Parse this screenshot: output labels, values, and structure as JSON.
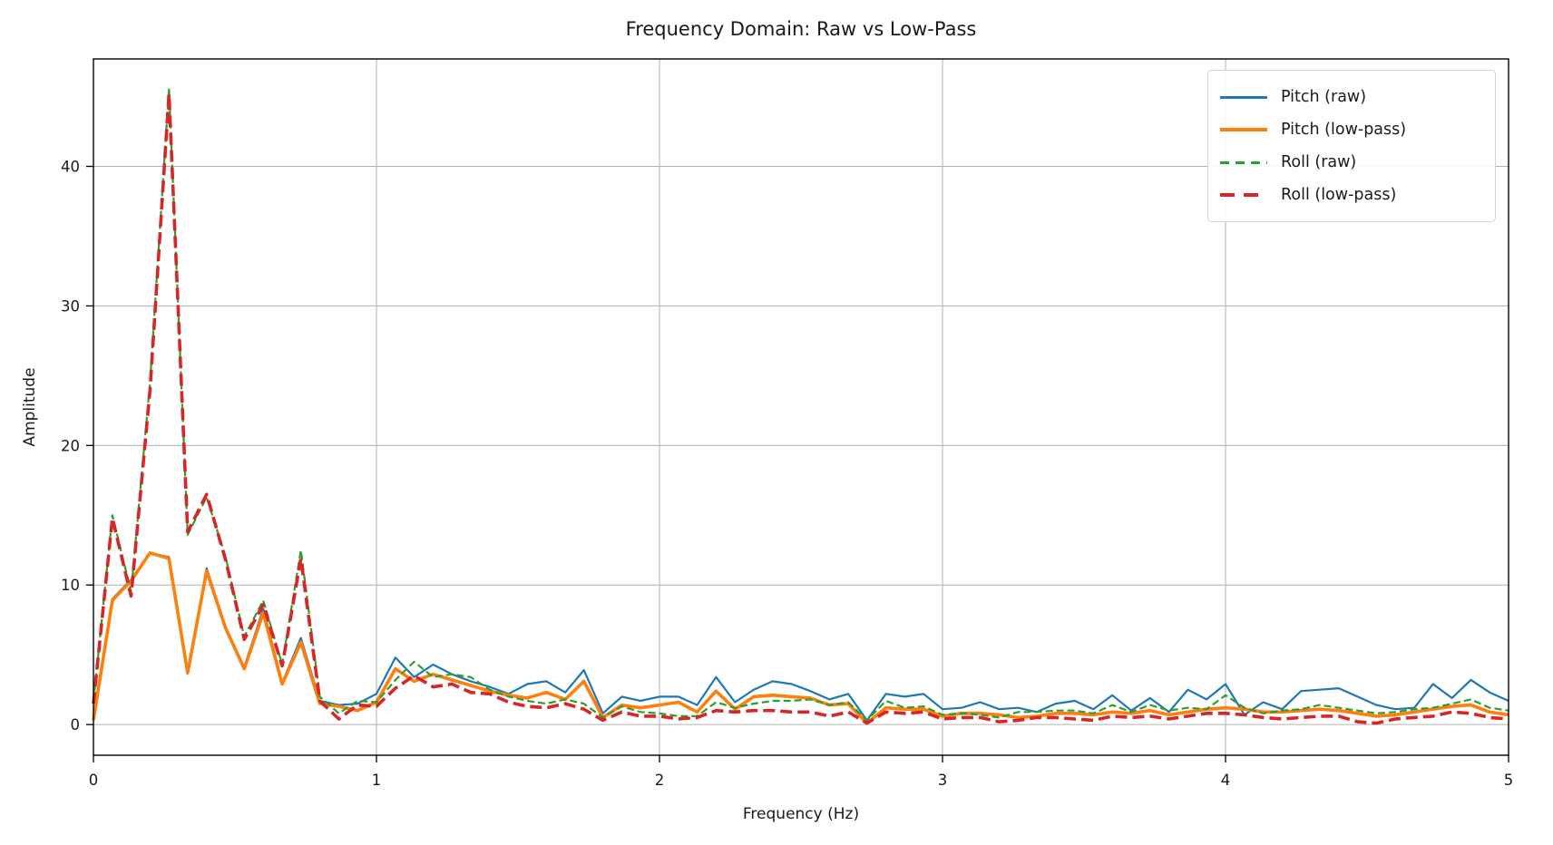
{
  "chart_data": {
    "type": "line",
    "title": "Frequency Domain: Raw vs Low-Pass",
    "xlabel": "Frequency (Hz)",
    "ylabel": "Amplitude",
    "xlim": [
      0,
      5
    ],
    "ylim": [
      -2.2,
      47.7
    ],
    "xticks": [
      0,
      1,
      2,
      3,
      4,
      5
    ],
    "yticks": [
      0,
      10,
      20,
      30,
      40
    ],
    "grid": true,
    "legend_position": "upper right",
    "style": {
      "background": "#ffffff",
      "grid_color": "#b0b0b0",
      "spine_color": "#000000",
      "tick_color": "#000000",
      "text_color": "#1a1a1a"
    },
    "x": [
      0,
      0.067,
      0.133,
      0.2,
      0.267,
      0.333,
      0.4,
      0.467,
      0.533,
      0.6,
      0.667,
      0.733,
      0.8,
      0.867,
      0.933,
      1.0,
      1.067,
      1.133,
      1.2,
      1.267,
      1.333,
      1.4,
      1.467,
      1.533,
      1.6,
      1.667,
      1.733,
      1.8,
      1.867,
      1.933,
      2.0,
      2.067,
      2.133,
      2.2,
      2.267,
      2.333,
      2.4,
      2.467,
      2.533,
      2.6,
      2.667,
      2.733,
      2.8,
      2.867,
      2.933,
      3.0,
      3.067,
      3.133,
      3.2,
      3.267,
      3.333,
      3.4,
      3.467,
      3.533,
      3.6,
      3.667,
      3.733,
      3.8,
      3.867,
      3.933,
      4.0,
      4.067,
      4.133,
      4.2,
      4.267,
      4.333,
      4.4,
      4.467,
      4.533,
      4.6,
      4.667,
      4.733,
      4.8,
      4.867,
      4.933,
      5.0
    ],
    "series": [
      {
        "name": "Pitch (raw)",
        "color": "#1f77b4",
        "style": "solid",
        "width": 2.2,
        "values": [
          0.4,
          9.0,
          10.4,
          12.3,
          12.0,
          3.8,
          11.2,
          7.0,
          4.1,
          8.3,
          3.0,
          6.2,
          1.7,
          1.4,
          1.5,
          2.2,
          4.8,
          3.4,
          4.3,
          3.6,
          3.1,
          2.7,
          2.2,
          2.9,
          3.1,
          2.3,
          3.9,
          0.8,
          2.0,
          1.7,
          2.0,
          2.0,
          1.4,
          3.4,
          1.6,
          2.5,
          3.1,
          2.9,
          2.4,
          1.8,
          2.2,
          0.3,
          2.2,
          2.0,
          2.2,
          1.1,
          1.2,
          1.6,
          1.1,
          1.2,
          0.9,
          1.5,
          1.7,
          1.1,
          2.1,
          1.0,
          1.9,
          0.9,
          2.5,
          1.8,
          2.9,
          0.7,
          1.6,
          1.1,
          2.4,
          2.5,
          2.6,
          2.0,
          1.4,
          1.1,
          1.2,
          2.9,
          1.9,
          3.2,
          2.3,
          1.7
        ]
      },
      {
        "name": "Pitch (low-pass)",
        "color": "#ff7f0e",
        "style": "solid",
        "width": 3.6,
        "values": [
          0.3,
          8.9,
          10.3,
          12.3,
          11.9,
          3.7,
          11.0,
          6.9,
          4.0,
          8.0,
          2.9,
          5.9,
          1.5,
          1.3,
          1.0,
          1.6,
          4.0,
          3.1,
          3.6,
          3.2,
          2.8,
          2.4,
          2.1,
          1.9,
          2.3,
          1.8,
          3.1,
          0.5,
          1.4,
          1.2,
          1.4,
          1.6,
          0.9,
          2.4,
          1.1,
          2.0,
          2.1,
          2.0,
          1.9,
          1.4,
          1.5,
          0.1,
          1.2,
          1.1,
          1.1,
          0.6,
          0.8,
          0.8,
          0.7,
          0.5,
          0.6,
          0.8,
          0.8,
          0.7,
          0.9,
          0.8,
          1.0,
          0.7,
          0.9,
          1.1,
          1.2,
          1.1,
          0.9,
          0.9,
          1.0,
          1.1,
          1.0,
          0.8,
          0.6,
          0.7,
          0.9,
          1.1,
          1.3,
          1.4,
          0.9,
          0.7
        ]
      },
      {
        "name": "Roll (raw)",
        "color": "#2ca02c",
        "style": "dashed",
        "width": 2.2,
        "values": [
          1.6,
          15.0,
          9.5,
          24.5,
          45.6,
          13.6,
          16.3,
          12.0,
          6.3,
          8.9,
          4.3,
          12.5,
          2.0,
          0.8,
          1.7,
          1.6,
          3.2,
          4.5,
          3.4,
          3.6,
          3.4,
          2.5,
          2.0,
          1.7,
          1.5,
          1.8,
          1.5,
          0.5,
          1.3,
          0.9,
          0.8,
          0.6,
          0.6,
          1.6,
          1.2,
          1.5,
          1.7,
          1.7,
          1.8,
          1.4,
          1.6,
          0.3,
          1.7,
          1.2,
          1.3,
          0.7,
          0.8,
          0.7,
          0.5,
          0.9,
          0.9,
          1.0,
          1.0,
          0.8,
          1.4,
          0.9,
          1.4,
          1.0,
          1.2,
          1.1,
          2.1,
          1.2,
          0.8,
          1.0,
          1.1,
          1.4,
          1.2,
          1.0,
          0.8,
          0.9,
          1.1,
          1.2,
          1.5,
          1.8,
          1.2,
          1.0
        ]
      },
      {
        "name": "Roll (low-pass)",
        "color": "#d62728",
        "style": "dashed",
        "width": 3.6,
        "values": [
          1.5,
          14.8,
          9.2,
          24.0,
          45.2,
          13.8,
          16.5,
          11.8,
          6.1,
          8.6,
          4.2,
          11.9,
          1.7,
          0.4,
          1.4,
          1.3,
          2.6,
          3.5,
          2.7,
          2.9,
          2.3,
          2.2,
          1.6,
          1.3,
          1.2,
          1.5,
          1.1,
          0.3,
          0.9,
          0.6,
          0.6,
          0.4,
          0.5,
          1.0,
          0.9,
          1.0,
          1.0,
          0.9,
          0.9,
          0.6,
          0.9,
          0.1,
          0.9,
          0.8,
          0.9,
          0.4,
          0.5,
          0.5,
          0.2,
          0.3,
          0.5,
          0.5,
          0.4,
          0.3,
          0.6,
          0.5,
          0.6,
          0.4,
          0.6,
          0.8,
          0.8,
          0.7,
          0.5,
          0.4,
          0.5,
          0.6,
          0.6,
          0.2,
          0.1,
          0.4,
          0.5,
          0.6,
          0.9,
          0.8,
          0.5,
          0.4
        ]
      }
    ]
  }
}
